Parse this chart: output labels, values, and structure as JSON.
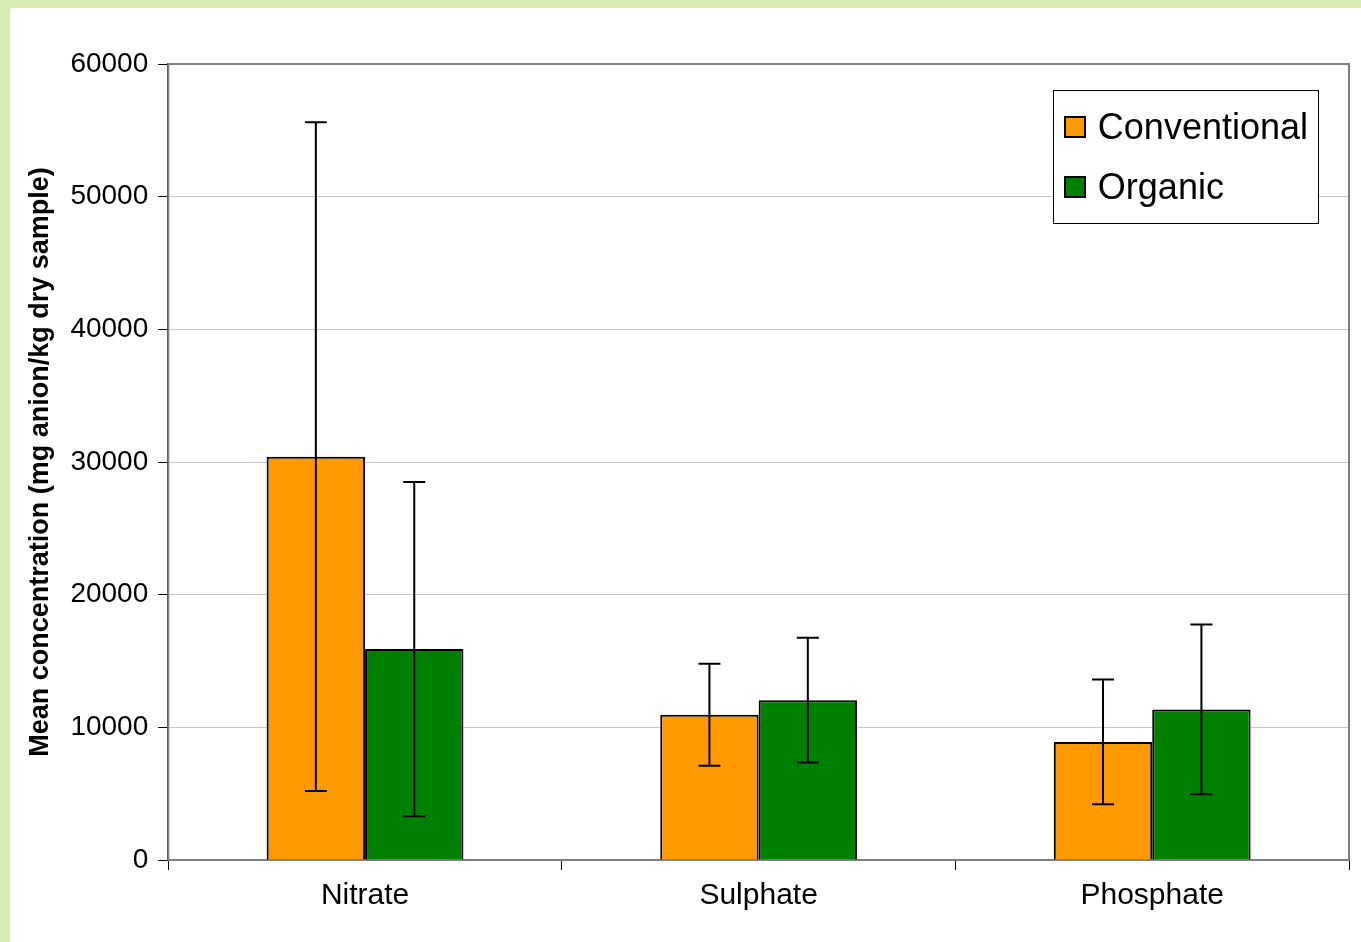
{
  "chart_data": {
    "type": "bar",
    "ylabel": "Mean concentration (mg anion/kg dry sample)",
    "categories": [
      "Nitrate",
      "Sulphate",
      "Phosphate"
    ],
    "series": [
      {
        "name": "Conventional",
        "color": "#ff9900",
        "values": [
          30400,
          10950,
          8900
        ],
        "errors": [
          25200,
          3850,
          4700
        ]
      },
      {
        "name": "Organic",
        "color": "#008000",
        "values": [
          15900,
          12050,
          11350
        ],
        "errors": [
          12600,
          4700,
          6400
        ]
      }
    ],
    "ylim": [
      0,
      60000
    ],
    "yticks": [
      0,
      10000,
      20000,
      30000,
      40000,
      50000,
      60000
    ],
    "grid": "y",
    "legend": "top right"
  }
}
